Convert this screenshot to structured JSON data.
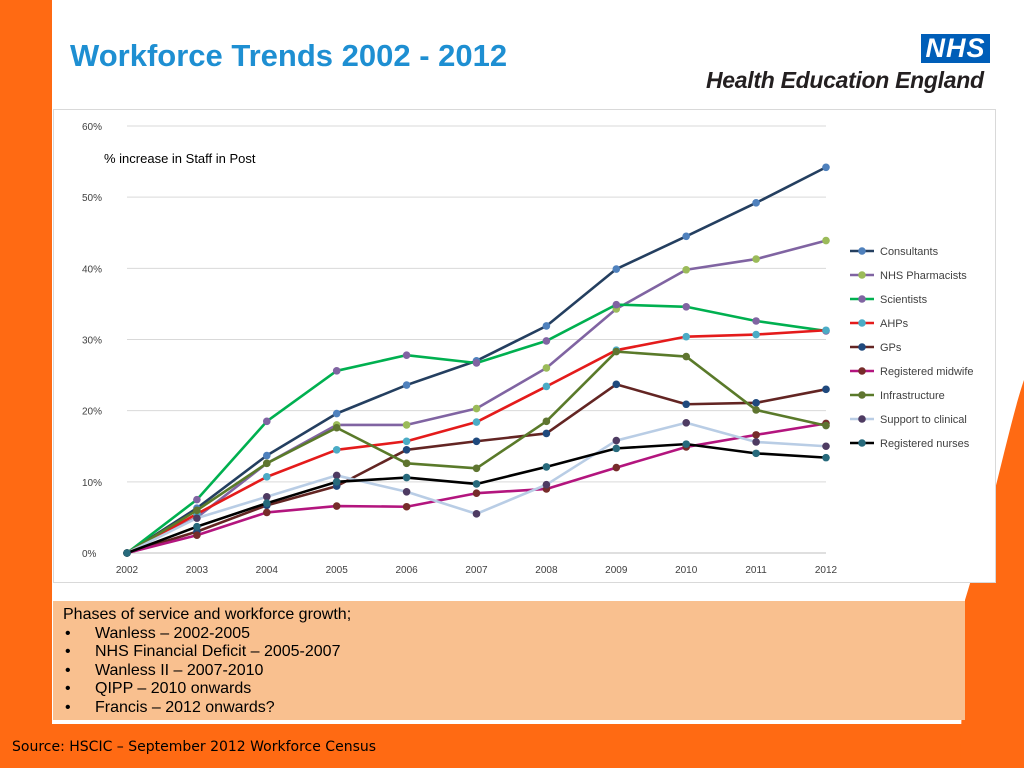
{
  "slide": {
    "title": "Workforce Trends 2002 - 2012",
    "logo_nhs": "NHS",
    "logo_org": "Health Education England",
    "source": "Source: HSCIC – September 2012 Workforce Census",
    "colors": {
      "background": "#ff6a13",
      "title": "#1e8fd2",
      "nhs_blue": "#005eb8",
      "phases_box": "#f9c08f"
    }
  },
  "phases": {
    "heading": "Phases of service and workforce growth;",
    "items": [
      "Wanless – 2002-2005",
      "NHS Financial Deficit – 2005-2007",
      "Wanless II – 2007-2010",
      "QIPP – 2010 onwards",
      "Francis – 2012 onwards?"
    ]
  },
  "chart_data": {
    "type": "line",
    "annotation": "% increase in Staff in Post",
    "x": [
      "2002",
      "2003",
      "2004",
      "2005",
      "2006",
      "2007",
      "2008",
      "2009",
      "2010",
      "2011",
      "2012"
    ],
    "ylim": [
      0,
      60
    ],
    "yticks": [
      0,
      10,
      20,
      30,
      40,
      50,
      60
    ],
    "ytick_labels": [
      "0%",
      "10%",
      "20%",
      "30%",
      "40%",
      "50%",
      "60%"
    ],
    "grid": true,
    "legend_position": "right",
    "series": [
      {
        "name": "Consultants",
        "color": "#243f60",
        "marker": "#4f81bd",
        "values": [
          0,
          6.3,
          13.7,
          19.6,
          23.6,
          27.0,
          31.9,
          39.9,
          44.5,
          49.2,
          54.2
        ]
      },
      {
        "name": "NHS Pharmacists",
        "color": "#8064a2",
        "marker": "#9bbb59",
        "values": [
          0,
          5.0,
          12.6,
          18.0,
          18.0,
          20.3,
          26.0,
          34.3,
          39.8,
          41.3,
          43.9
        ]
      },
      {
        "name": "Scientists",
        "color": "#00b050",
        "marker": "#8064a2",
        "values": [
          0,
          7.5,
          18.5,
          25.6,
          27.8,
          26.7,
          29.8,
          34.9,
          34.6,
          32.6,
          31.2
        ]
      },
      {
        "name": "AHPs",
        "color": "#e41b1b",
        "marker": "#4bacc6",
        "values": [
          0,
          5.5,
          10.7,
          14.5,
          15.7,
          18.4,
          23.4,
          28.5,
          30.4,
          30.7,
          31.3
        ]
      },
      {
        "name": "GPs",
        "color": "#632523",
        "marker": "#1f497d",
        "values": [
          0,
          3.0,
          6.7,
          9.4,
          14.5,
          15.7,
          16.8,
          23.7,
          20.9,
          21.1,
          23.0
        ]
      },
      {
        "name": "Registered midwife",
        "color": "#b3157e",
        "marker": "#772c2a",
        "values": [
          0,
          2.5,
          5.7,
          6.6,
          6.5,
          8.4,
          9.0,
          12.0,
          14.9,
          16.6,
          18.2
        ]
      },
      {
        "name": "Infrastructure",
        "color": "#5a7a2a",
        "marker": "#5f7530",
        "values": [
          0,
          6.0,
          12.6,
          17.6,
          12.6,
          11.9,
          18.5,
          28.3,
          27.6,
          20.1,
          17.9
        ]
      },
      {
        "name": "Support to clinical",
        "color": "#b9cde5",
        "marker": "#4e3b62",
        "values": [
          0,
          4.9,
          7.9,
          10.9,
          8.6,
          5.5,
          9.6,
          15.8,
          18.3,
          15.6,
          15.0
        ]
      },
      {
        "name": "Registered nurses",
        "color": "#000000",
        "marker": "#276a7c",
        "values": [
          0,
          3.7,
          7.0,
          10.0,
          10.6,
          9.7,
          12.1,
          14.7,
          15.3,
          14.0,
          13.4
        ]
      }
    ]
  }
}
